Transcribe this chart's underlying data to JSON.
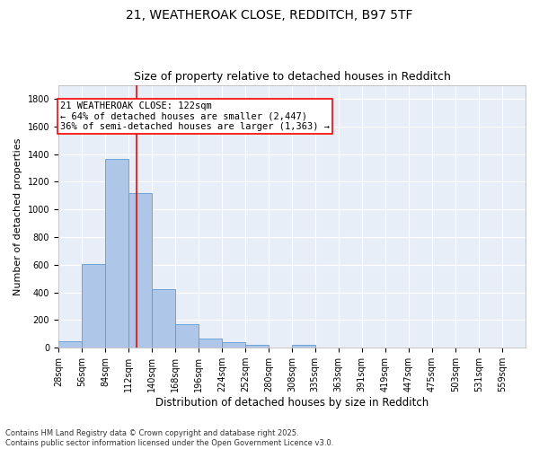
{
  "title_line1": "21, WEATHEROAK CLOSE, REDDITCH, B97 5TF",
  "title_line2": "Size of property relative to detached houses in Redditch",
  "xlabel": "Distribution of detached houses by size in Redditch",
  "ylabel": "Number of detached properties",
  "bar_edges": [
    28,
    56,
    84,
    112,
    140,
    168,
    196,
    224,
    252,
    280,
    308,
    335,
    363,
    391,
    419,
    447,
    475,
    503,
    531,
    559,
    587
  ],
  "bar_heights": [
    50,
    605,
    1365,
    1120,
    425,
    170,
    65,
    40,
    20,
    0,
    20,
    0,
    0,
    0,
    0,
    0,
    0,
    0,
    0,
    0
  ],
  "bar_color": "#aec6e8",
  "bar_edgecolor": "#5b9bd5",
  "bg_color": "#e8eef7",
  "grid_color": "#ffffff",
  "vline_x": 122,
  "vline_color": "red",
  "annotation_line1": "21 WEATHEROAK CLOSE: 122sqm",
  "annotation_line2": "← 64% of detached houses are smaller (2,447)",
  "annotation_line3": "36% of semi-detached houses are larger (1,363) →",
  "annotation_fontsize": 7.5,
  "title_fontsize": 10,
  "subtitle_fontsize": 9,
  "xlabel_fontsize": 8.5,
  "ylabel_fontsize": 8,
  "tick_fontsize": 7,
  "footnote": "Contains HM Land Registry data © Crown copyright and database right 2025.\nContains public sector information licensed under the Open Government Licence v3.0.",
  "footnote_fontsize": 6,
  "ylim": [
    0,
    1900
  ],
  "yticks": [
    0,
    200,
    400,
    600,
    800,
    1000,
    1200,
    1400,
    1600,
    1800
  ],
  "fig_width": 6.0,
  "fig_height": 5.0,
  "dpi": 100
}
